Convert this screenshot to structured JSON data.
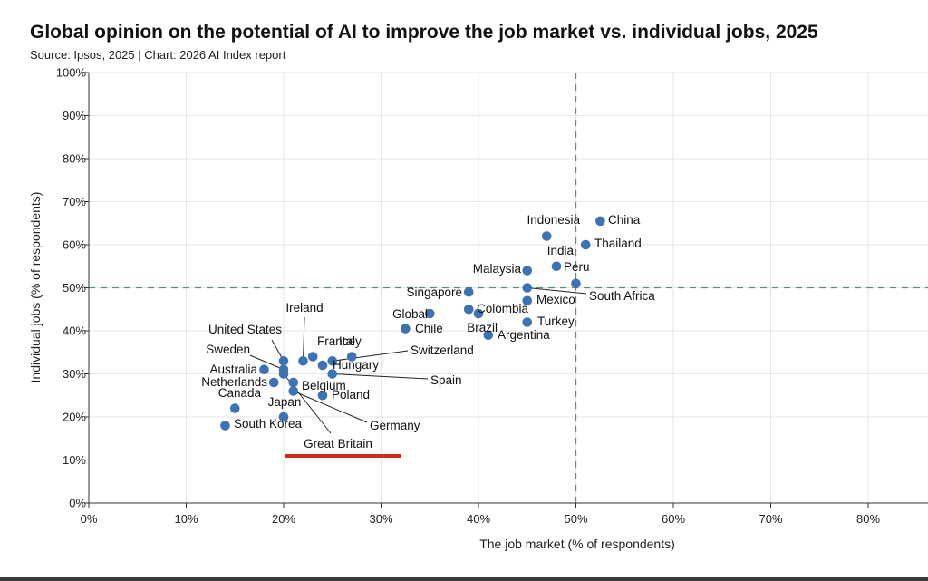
{
  "header": {
    "title": "Global opinion on the potential of AI to improve the job market vs. individual jobs, 2025",
    "subtitle": "Source: Ipsos, 2025 | Chart: 2026 AI Index report"
  },
  "chart_data": {
    "type": "scatter",
    "title": "Global opinion on the potential of AI to improve the job market vs. individual jobs, 2025",
    "subtitle": "Source: Ipsos, 2025 | Chart: 2026 AI Index report",
    "xlabel": "The job market (% of respondents)",
    "ylabel": "Individual jobs (% of respondents)",
    "xlim": [
      0,
      86
    ],
    "ylim": [
      0,
      100
    ],
    "x_ticks": [
      0,
      10,
      20,
      30,
      40,
      50,
      60,
      70,
      80
    ],
    "x_tick_labels": [
      "0%",
      "10%",
      "20%",
      "30%",
      "40%",
      "50%",
      "60%",
      "70%",
      "80%"
    ],
    "y_ticks": [
      0,
      10,
      20,
      30,
      40,
      50,
      60,
      70,
      80,
      90,
      100
    ],
    "y_tick_labels": [
      "0%",
      "10%",
      "20%",
      "30%",
      "40%",
      "50%",
      "60%",
      "70%",
      "80%",
      "90%",
      "100%"
    ],
    "reference_lines": {
      "x": 50,
      "y": 50
    },
    "point_color": "#3d72b4",
    "highlight_color": "#d22b1e",
    "highlight_label": "Great Britain",
    "points": [
      {
        "label": "China",
        "x": 52.5,
        "y": 65.5
      },
      {
        "label": "Indonesia",
        "x": 47,
        "y": 62
      },
      {
        "label": "Thailand",
        "x": 51,
        "y": 60
      },
      {
        "label": "India",
        "x": 48,
        "y": 55
      },
      {
        "label": "Peru",
        "x": 45,
        "y": 54
      },
      {
        "label": "Malaysia",
        "x": 50,
        "y": 51
      },
      {
        "label": "South Africa",
        "x": 45,
        "y": 50
      },
      {
        "label": "Mexico",
        "x": 45,
        "y": 47
      },
      {
        "label": "Singapore",
        "x": 39,
        "y": 49
      },
      {
        "label": "Colombia",
        "x": 39,
        "y": 45
      },
      {
        "label": "Global",
        "x": 35,
        "y": 44
      },
      {
        "label": "Brazil",
        "x": 40,
        "y": 44
      },
      {
        "label": "Turkey",
        "x": 45,
        "y": 42
      },
      {
        "label": "Chile",
        "x": 32.5,
        "y": 40.5
      },
      {
        "label": "Argentina",
        "x": 41,
        "y": 39
      },
      {
        "label": "Ireland",
        "x": 22,
        "y": 33
      },
      {
        "label": "France",
        "x": 23,
        "y": 34
      },
      {
        "label": "Italy",
        "x": 27,
        "y": 34
      },
      {
        "label": "Switzerland",
        "x": 25,
        "y": 33
      },
      {
        "label": "United States",
        "x": 20,
        "y": 33
      },
      {
        "label": "Hungary",
        "x": 24,
        "y": 32
      },
      {
        "label": "Sweden",
        "x": 20,
        "y": 31
      },
      {
        "label": "Australia",
        "x": 18,
        "y": 31
      },
      {
        "label": "Spain",
        "x": 25,
        "y": 30
      },
      {
        "label": "Netherlands",
        "x": 19,
        "y": 28
      },
      {
        "label": "Belgium",
        "x": 21,
        "y": 28
      },
      {
        "label": "Poland",
        "x": 24,
        "y": 25
      },
      {
        "label": "Germany",
        "x": 21,
        "y": 26
      },
      {
        "label": "Great Britain",
        "x": 20,
        "y": 30
      },
      {
        "label": "Canada",
        "x": 15,
        "y": 22
      },
      {
        "label": "Japan",
        "x": 20,
        "y": 20
      },
      {
        "label": "South Korea",
        "x": 14,
        "y": 18
      }
    ]
  }
}
